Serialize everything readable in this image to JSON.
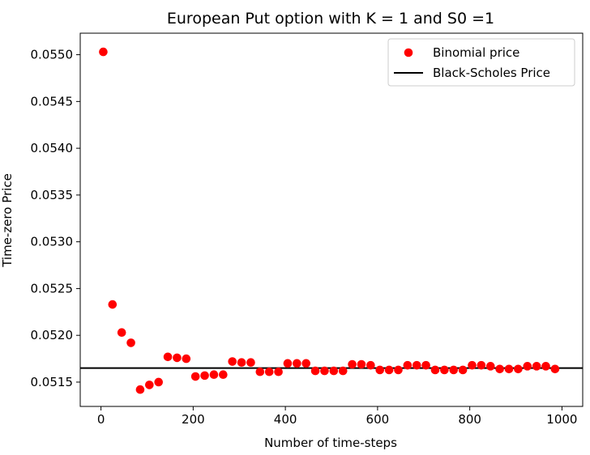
{
  "chart_data": {
    "type": "scatter",
    "title": "European Put option with K = 1 and S0 =1",
    "xlabel": "Number of time-steps",
    "ylabel": "Time-zero Price",
    "xlim": [
      -45,
      1045
    ],
    "ylim": [
      0.05124,
      0.05523
    ],
    "xticks": [
      0,
      200,
      400,
      600,
      800,
      1000
    ],
    "xtick_labels": [
      "0",
      "200",
      "400",
      "600",
      "800",
      "1000"
    ],
    "yticks": [
      0.0515,
      0.052,
      0.0525,
      0.053,
      0.0535,
      0.054,
      0.0545,
      0.055
    ],
    "ytick_labels": [
      "0.0515",
      "0.0520",
      "0.0525",
      "0.0530",
      "0.0535",
      "0.0540",
      "0.0545",
      "0.0550"
    ],
    "grid": false,
    "legend_position": "top-right",
    "series": [
      {
        "name": "Binomial price",
        "kind": "scatter",
        "color": "#ff0000",
        "x": [
          5,
          25,
          45,
          65,
          85,
          105,
          125,
          145,
          165,
          185,
          205,
          225,
          245,
          265,
          285,
          305,
          325,
          345,
          365,
          385,
          405,
          425,
          445,
          465,
          485,
          505,
          525,
          545,
          565,
          585,
          605,
          625,
          645,
          665,
          685,
          705,
          725,
          745,
          765,
          785,
          805,
          825,
          845,
          865,
          885,
          905,
          925,
          945,
          965,
          985
        ],
        "y": [
          0.05503,
          0.05233,
          0.05203,
          0.05192,
          0.05142,
          0.05147,
          0.0515,
          0.05177,
          0.05176,
          0.05175,
          0.05156,
          0.05157,
          0.05158,
          0.05158,
          0.05172,
          0.05171,
          0.05171,
          0.05161,
          0.05161,
          0.05161,
          0.0517,
          0.0517,
          0.0517,
          0.05162,
          0.05162,
          0.05162,
          0.05162,
          0.05169,
          0.05169,
          0.05168,
          0.05163,
          0.05163,
          0.05163,
          0.05168,
          0.05168,
          0.05168,
          0.05163,
          0.05163,
          0.05163,
          0.05163,
          0.05168,
          0.05168,
          0.05167,
          0.05164,
          0.05164,
          0.05164,
          0.05167,
          0.05167,
          0.05167,
          0.05164
        ]
      },
      {
        "name": "Black-Scholes Price",
        "kind": "hline",
        "color": "#000000",
        "y": 0.05165
      }
    ]
  }
}
